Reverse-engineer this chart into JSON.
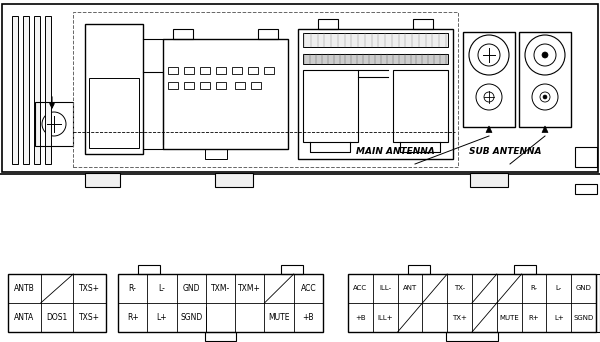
{
  "bg_color": "#ffffff",
  "line_color": "#000000",
  "main_antenna_label": "MAIN ANTENNA",
  "sub_antenna_label": "SUB ANTENNA",
  "connector1_rows": [
    [
      "ANTB",
      "",
      "TXS+"
    ],
    [
      "ANTA",
      "DOS1",
      "TXS+"
    ]
  ],
  "connector2_top_row": [
    "R-",
    "L-",
    "GND",
    "TXM-",
    "TXM+",
    "",
    "ACC"
  ],
  "connector2_bot_row": [
    "R+",
    "L+",
    "SGND",
    "",
    "",
    "MUTE",
    "+B"
  ],
  "connector3_top_row": [
    "ACC",
    "ILL-",
    "ANT",
    "",
    "TX-",
    "",
    "",
    "R-",
    "L-",
    "GND"
  ],
  "connector3_bot_row": [
    "+B",
    "ILL+",
    "",
    "",
    "TX+",
    "",
    "MUTE",
    "R+",
    "L+",
    "SGND"
  ]
}
